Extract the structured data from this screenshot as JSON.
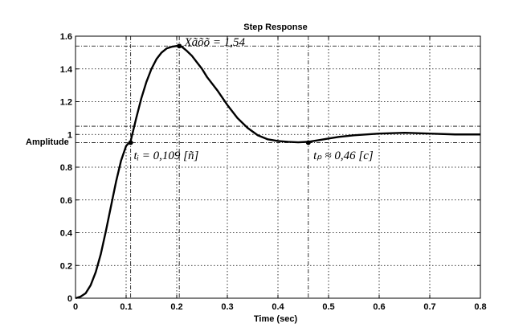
{
  "chart_data": {
    "type": "line",
    "title": "Step Response",
    "xlabel": "Time (sec)",
    "ylabel": "Amplitude",
    "xlim": [
      0,
      0.8
    ],
    "ylim": [
      0,
      1.6
    ],
    "x_ticks": [
      0,
      0.1,
      0.2,
      0.3,
      0.4,
      0.5,
      0.6,
      0.7,
      0.8
    ],
    "x_tick_labels": [
      "0",
      "0.1",
      "0.2",
      "0.3",
      "0.4",
      "0.5",
      "0.6",
      "0.7",
      "0.8"
    ],
    "y_ticks": [
      0,
      0.2,
      0.4,
      0.6,
      0.8,
      1.0,
      1.2,
      1.4,
      1.6
    ],
    "y_tick_labels": [
      "0",
      "0.2",
      "0.4",
      "0.6",
      "0.8",
      "1",
      "1.2",
      "1.4",
      "1.6"
    ],
    "grid": true,
    "series": [
      {
        "x": [
          0,
          0.01,
          0.02,
          0.03,
          0.04,
          0.05,
          0.06,
          0.07,
          0.08,
          0.09,
          0.1,
          0.109,
          0.12,
          0.13,
          0.14,
          0.15,
          0.16,
          0.17,
          0.18,
          0.19,
          0.2,
          0.205,
          0.21,
          0.22,
          0.23,
          0.24,
          0.25,
          0.26,
          0.28,
          0.3,
          0.32,
          0.34,
          0.36,
          0.38,
          0.4,
          0.42,
          0.44,
          0.46,
          0.48,
          0.5,
          0.52,
          0.55,
          0.6,
          0.65,
          0.7,
          0.75,
          0.8
        ],
        "y": [
          0,
          0.01,
          0.03,
          0.08,
          0.16,
          0.27,
          0.41,
          0.56,
          0.71,
          0.84,
          0.93,
          0.96,
          1.1,
          1.22,
          1.32,
          1.4,
          1.46,
          1.5,
          1.525,
          1.535,
          1.54,
          1.54,
          1.535,
          1.51,
          1.48,
          1.44,
          1.4,
          1.35,
          1.27,
          1.18,
          1.1,
          1.04,
          0.995,
          0.97,
          0.96,
          0.955,
          0.952,
          0.955,
          0.965,
          0.975,
          0.985,
          0.995,
          1.005,
          1.01,
          1.005,
          1.0,
          1.0
        ]
      }
    ],
    "reference_lines": {
      "y": [
        0.95,
        1.05,
        1.54
      ],
      "x": [
        0.109,
        0.205,
        0.46
      ]
    },
    "markers": [
      {
        "x": 0.109,
        "y": 0.95
      },
      {
        "x": 0.205,
        "y": 1.54
      },
      {
        "x": 0.46,
        "y": 0.95
      }
    ],
    "annotations": [
      {
        "x": 0.115,
        "y": 0.85,
        "text": "tᵢ = 0,109 [ñ]"
      },
      {
        "x": 0.215,
        "y": 1.54,
        "text": "Xãõõ = 1,54"
      },
      {
        "x": 0.47,
        "y": 0.85,
        "text": "tₚ ≈ 0,46 [c]"
      }
    ]
  }
}
